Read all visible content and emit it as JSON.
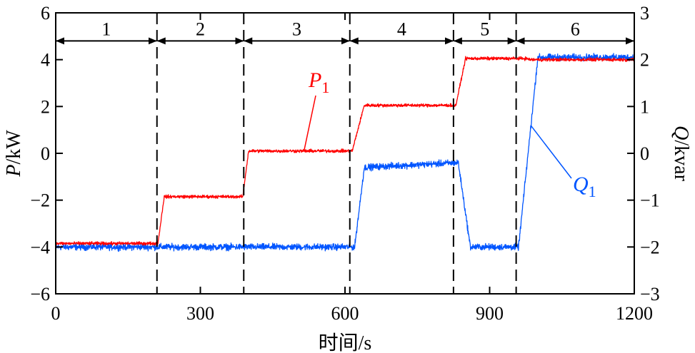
{
  "chart_data": {
    "type": "line",
    "xlabel": "时间/s",
    "ylabel_left": "P/kW",
    "ylabel_right": "Q/kvar",
    "xlim": [
      0,
      1200
    ],
    "ylim_left": [
      -6,
      6
    ],
    "ylim_right": [
      -3,
      3
    ],
    "xticks": [
      "0",
      "300",
      "600",
      "900",
      "1200"
    ],
    "yticks_left": [
      "−6",
      "−4",
      "−2",
      "0",
      "2",
      "4",
      "6"
    ],
    "yticks_right": [
      "−3",
      "−2",
      "−1",
      "0",
      "1",
      "2",
      "3"
    ],
    "grid": false,
    "stage_boundaries": [
      210,
      390,
      610,
      825,
      955
    ],
    "stages": [
      {
        "label": "1",
        "start": 0,
        "end": 210
      },
      {
        "label": "2",
        "start": 210,
        "end": 390
      },
      {
        "label": "3",
        "start": 390,
        "end": 610
      },
      {
        "label": "4",
        "start": 610,
        "end": 825
      },
      {
        "label": "5",
        "start": 825,
        "end": 955
      },
      {
        "label": "6",
        "start": 955,
        "end": 1200
      }
    ],
    "series": [
      {
        "name": "P1",
        "axis": "left",
        "unit": "kW",
        "color": "#ff0000",
        "noise": 0.1,
        "x": [
          0,
          212,
          225,
          388,
          400,
          615,
          640,
          830,
          850,
          975,
          985,
          1200
        ],
        "y": [
          -3.85,
          -3.85,
          -1.85,
          -1.85,
          0.1,
          0.1,
          2.05,
          2.05,
          4.05,
          4.05,
          4.0,
          4.0
        ]
      },
      {
        "name": "Q1",
        "axis": "right",
        "unit": "kvar",
        "color": "#0055ff",
        "noise": 0.1,
        "x": [
          0,
          620,
          640,
          835,
          860,
          960,
          1000,
          1200
        ],
        "y": [
          -2.0,
          -2.0,
          -0.3,
          -0.2,
          -2.0,
          -2.0,
          2.05,
          2.05
        ]
      }
    ],
    "annotations": [
      {
        "series": "P1",
        "text": "P",
        "subscript": "1",
        "at_x": 515,
        "at_y": 0.1
      },
      {
        "series": "Q1",
        "text": "Q",
        "subscript": "1",
        "at_x": 985,
        "at_y": 0.6
      }
    ]
  }
}
